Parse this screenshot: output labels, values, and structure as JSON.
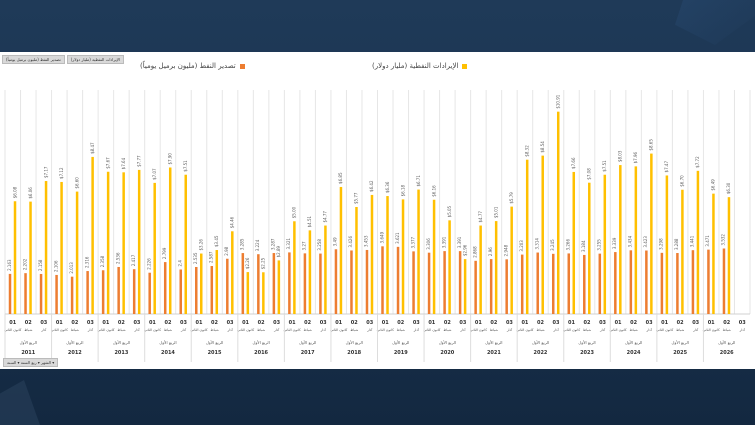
{
  "tabs": [
    "الإيرادات النفطية (مليار دولار)",
    "تصدير النفط (مليون برميل يومياً)"
  ],
  "filter_label": "الشهر ▾ ربع السنة ▾ السنة ▾",
  "colors": {
    "revenue": "#FFC000",
    "export": "#ED7D31",
    "grid": "#e6e6e6",
    "text": "#595959"
  },
  "chart_data": {
    "type": "bar",
    "title": "",
    "legend_position": "top",
    "series": [
      {
        "name": "الإيرادات النفطية (مليار دولار)",
        "color": "#FFC000",
        "values": [
          6.08,
          6.06,
          7.17,
          7.12,
          6.6,
          8.47,
          7.67,
          7.64,
          7.77,
          7.07,
          7.9,
          7.51,
          3.26,
          3.45,
          4.46,
          2.26,
          2.25,
          2.89,
          5.0,
          4.51,
          4.77,
          6.85,
          5.77,
          6.42,
          6.36,
          6.18,
          6.71,
          6.16,
          5.05,
          2.96,
          4.77,
          5.01,
          5.79,
          8.32,
          8.54,
          10.91,
          7.66,
          7.08,
          7.51,
          8.03,
          7.96,
          8.65,
          7.47,
          6.7,
          7.72,
          6.49,
          6.3,
          null
        ],
        "labels": [
          "$6.08",
          "$6.06",
          "$7.17",
          "$7.12",
          "$6.60",
          "$8.47",
          "$7.67",
          "$7.64",
          "$7.77",
          "$7.07",
          "$7.90",
          "$7.51",
          "$3.26",
          "$3.45",
          "$4.46",
          "$2.26",
          "$2.25",
          "$2.89",
          "$5.00",
          "$4.51",
          "$4.77",
          "$6.85",
          "$5.77",
          "$6.42",
          "$6.36",
          "$6.18",
          "$6.71",
          "$6.16",
          "$5.05",
          "$2.96",
          "$4.77",
          "$5.01",
          "$5.79",
          "$8.32",
          "$8.54",
          "$10.91",
          "$7.66",
          "$7.08",
          "$7.51",
          "$8.03",
          "$7.96",
          "$8.65",
          "$7.47",
          "$6.70",
          "$7.72",
          "$6.49",
          "$6.30",
          ""
        ]
      },
      {
        "name": "تصدير النفط (مليون برميل يومياً)",
        "color": "#ED7D31",
        "values": [
          2.163,
          2.202,
          2.158,
          2.106,
          2.013,
          2.316,
          2.358,
          2.536,
          2.417,
          2.226,
          2.799,
          2.4,
          2.535,
          2.587,
          2.98,
          3.285,
          3.224,
          3.287,
          3.321,
          3.27,
          3.258,
          3.49,
          3.426,
          3.453,
          3.649,
          3.621,
          3.377,
          3.306,
          3.391,
          3.391,
          2.868,
          2.96,
          2.948,
          3.203,
          3.314,
          3.245,
          3.266,
          3.184,
          3.255,
          3.339,
          3.434,
          3.423,
          3.298,
          3.288,
          3.441,
          3.471,
          3.532,
          null
        ],
        "labels": [
          "2.163",
          "2.202",
          "2.158",
          "2.106",
          "2.013",
          "2.316",
          "2.358",
          "2.536",
          "2.417",
          "2.226",
          "2.799",
          "2.4",
          "2.535",
          "2.587",
          "2.98",
          "3.285",
          "3.224",
          "3.287",
          "3.321",
          "3.27",
          "3.258",
          "3.49",
          "3.426",
          "3.453",
          "3.649",
          "3.621",
          "3.377",
          "3.306",
          "3.391",
          "3.391",
          "2.868",
          "2.96",
          "2.948",
          "3.203",
          "3.314",
          "3.245",
          "3.266",
          "3.184",
          "3.255",
          "3.339",
          "3.434",
          "3.423",
          "3.298",
          "3.288",
          "3.441",
          "3.471",
          "3.532",
          ""
        ]
      }
    ],
    "month_codes": [
      "01",
      "02",
      "03"
    ],
    "month_names": [
      "كانون الثاني",
      "شباط",
      "آذار"
    ],
    "quarter_label": "الربع الأول",
    "years": [
      "2011",
      "2012",
      "2013",
      "2014",
      "2015",
      "2016",
      "2017",
      "2018",
      "2019",
      "2020",
      "2021",
      "2022",
      "2023",
      "2024",
      "2025",
      "2026"
    ],
    "ylim_revenue": [
      0,
      11
    ],
    "ylim_export": [
      0,
      11
    ],
    "grid": true
  }
}
